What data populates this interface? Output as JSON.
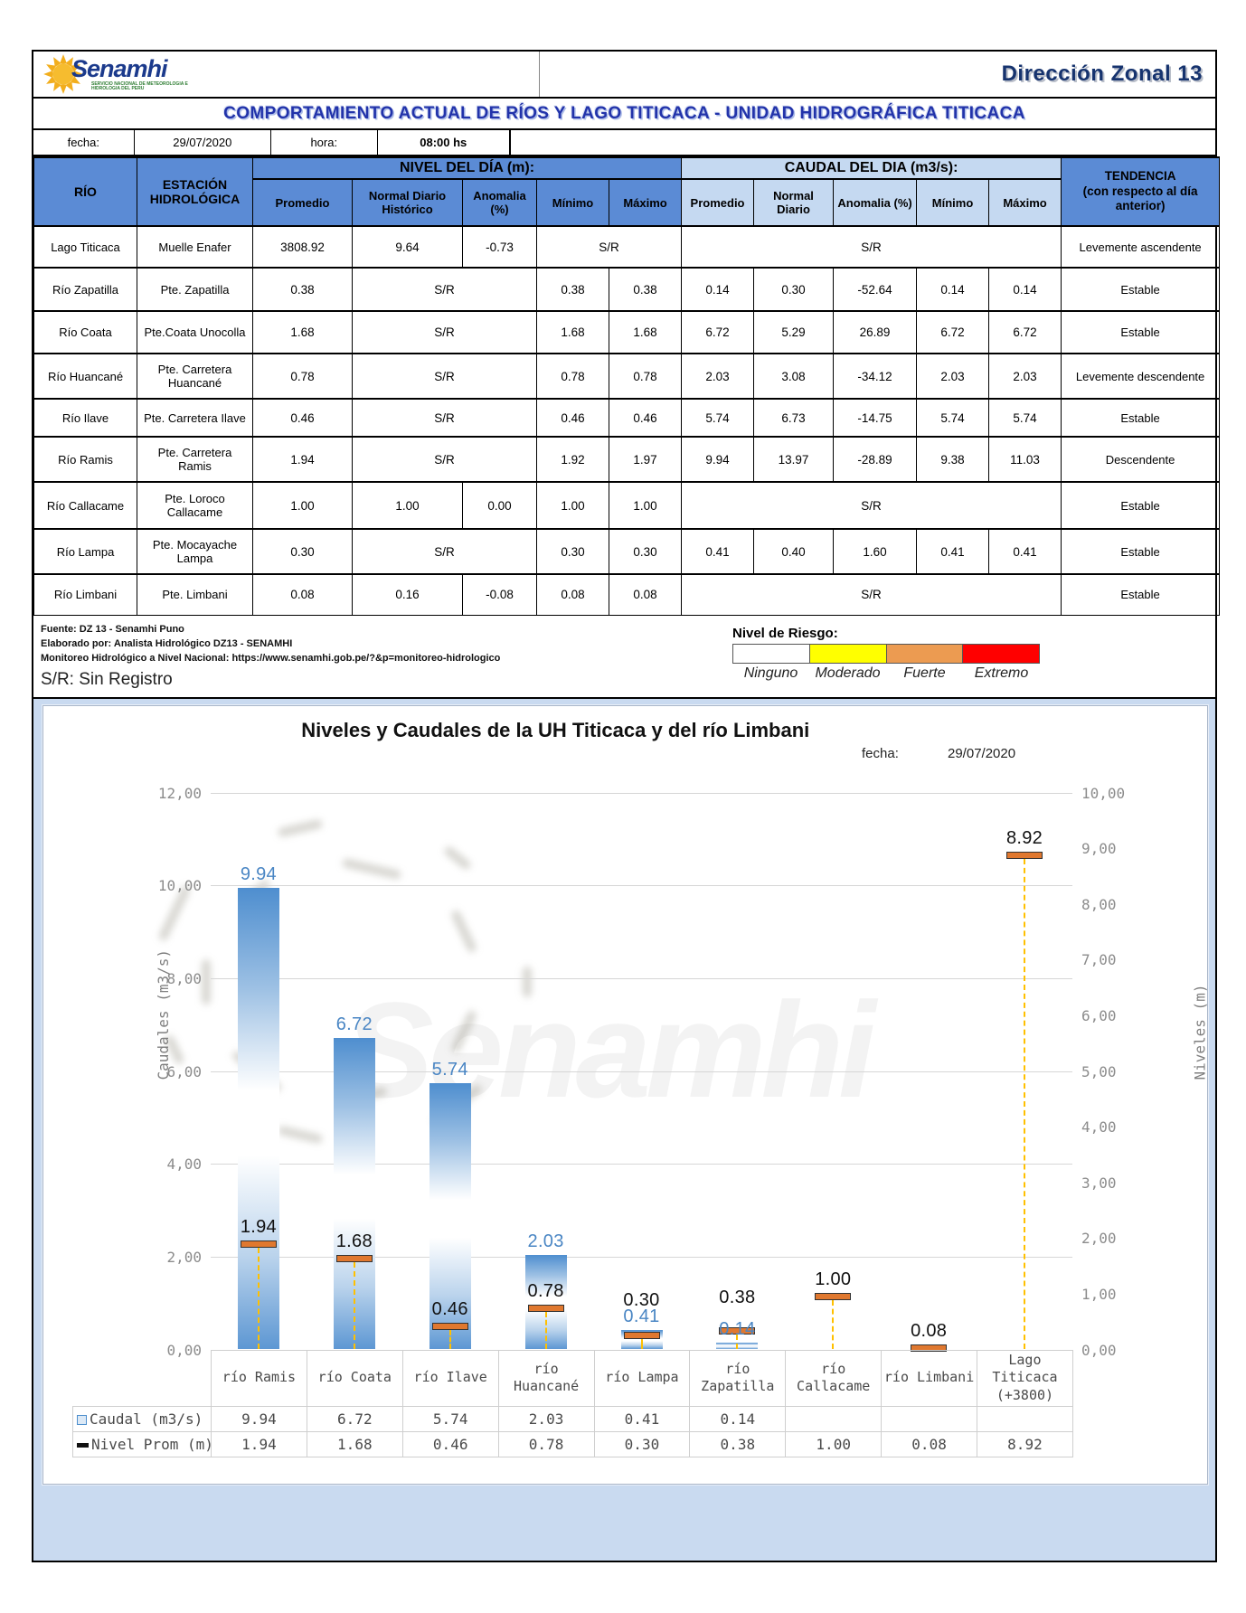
{
  "header": {
    "brand": "Senamhi",
    "brand_sub": "SERVICIO NACIONAL DE METEOROLOGIA E HIDROLOGIA DEL PERU",
    "direccion": "Dirección Zonal 13"
  },
  "title": "COMPORTAMIENTO ACTUAL DE RÍOS Y LAGO TITICACA - UNIDAD HIDROGRÁFICA  TITICACA",
  "meta": {
    "fecha_label": "fecha:",
    "fecha": "29/07/2020",
    "hora_label": "hora:",
    "hora": "08:00 hs"
  },
  "table": {
    "col_rio": "RÍO",
    "col_estacion": "ESTACIÓN HIDROLÓGICA",
    "nivel_header": "NIVEL DEL DÍA (m):",
    "caudal_header": "CAUDAL DEL DIA (m3/s):",
    "tendencia_line1": "TENDENCIA",
    "tendencia_line2": "(con respecto al día anterior)",
    "nivel_cols": [
      "Promedio",
      "Normal Diario Histórico",
      "Anomalia (%)",
      "Mínimo",
      "Máximo"
    ],
    "caudal_cols": [
      "Promedio",
      "Normal Diario",
      "Anomalia (%)",
      "Mínimo",
      "Máximo"
    ],
    "rows": [
      {
        "rio": "Lago Titicaca",
        "estacion": "Muelle Enafer",
        "nivel": [
          [
            "3808.92",
            1
          ],
          [
            "9.64",
            1
          ],
          [
            "-0.73",
            1
          ],
          [
            "S/R",
            2
          ]
        ],
        "caudal": [
          [
            "S/R",
            5
          ]
        ],
        "tendencia": "Levemente ascendente"
      },
      {
        "rio": "Río Zapatilla",
        "estacion": "Pte. Zapatilla",
        "nivel": [
          [
            "0.38",
            1
          ],
          [
            "S/R",
            2
          ],
          [
            "0.38",
            1
          ],
          [
            "0.38",
            1
          ]
        ],
        "caudal": [
          [
            "0.14",
            1
          ],
          [
            "0.30",
            1
          ],
          [
            "-52.64",
            1
          ],
          [
            "0.14",
            1
          ],
          [
            "0.14",
            1
          ]
        ],
        "tendencia": "Estable"
      },
      {
        "rio": "Río Coata",
        "estacion": "Pte.Coata Unocolla",
        "nivel": [
          [
            "1.68",
            1
          ],
          [
            "S/R",
            2
          ],
          [
            "1.68",
            1
          ],
          [
            "1.68",
            1
          ]
        ],
        "caudal": [
          [
            "6.72",
            1
          ],
          [
            "5.29",
            1
          ],
          [
            "26.89",
            1
          ],
          [
            "6.72",
            1
          ],
          [
            "6.72",
            1
          ]
        ],
        "tendencia": "Estable"
      },
      {
        "rio": "Río Huancané",
        "estacion": "Pte. Carretera Huancané",
        "nivel": [
          [
            "0.78",
            1
          ],
          [
            "S/R",
            2
          ],
          [
            "0.78",
            1
          ],
          [
            "0.78",
            1
          ]
        ],
        "caudal": [
          [
            "2.03",
            1
          ],
          [
            "3.08",
            1
          ],
          [
            "-34.12",
            1
          ],
          [
            "2.03",
            1
          ],
          [
            "2.03",
            1
          ]
        ],
        "tendencia": "Levemente descendente"
      },
      {
        "rio": "Río Ilave",
        "estacion": "Pte. Carretera Ilave",
        "nivel": [
          [
            "0.46",
            1
          ],
          [
            "S/R",
            2
          ],
          [
            "0.46",
            1
          ],
          [
            "0.46",
            1
          ]
        ],
        "caudal": [
          [
            "5.74",
            1
          ],
          [
            "6.73",
            1
          ],
          [
            "-14.75",
            1
          ],
          [
            "5.74",
            1
          ],
          [
            "5.74",
            1
          ]
        ],
        "tendencia": "Estable"
      },
      {
        "rio": "Río Ramis",
        "estacion": "Pte. Carretera Ramis",
        "nivel": [
          [
            "1.94",
            1
          ],
          [
            "S/R",
            2
          ],
          [
            "1.92",
            1
          ],
          [
            "1.97",
            1
          ]
        ],
        "caudal": [
          [
            "9.94",
            1
          ],
          [
            "13.97",
            1
          ],
          [
            "-28.89",
            1
          ],
          [
            "9.38",
            1
          ],
          [
            "11.03",
            1
          ]
        ],
        "tendencia": "Descendente"
      },
      {
        "rio": "Río Callacame",
        "estacion": "Pte. Loroco Callacame",
        "nivel": [
          [
            "1.00",
            1
          ],
          [
            "1.00",
            1
          ],
          [
            "0.00",
            1
          ],
          [
            "1.00",
            1
          ],
          [
            "1.00",
            1
          ]
        ],
        "caudal": [
          [
            "S/R",
            5
          ]
        ],
        "tendencia": "Estable"
      },
      {
        "rio": "Río Lampa",
        "estacion": "Pte. Mocayache Lampa",
        "nivel": [
          [
            "0.30",
            1
          ],
          [
            "S/R",
            2
          ],
          [
            "0.30",
            1
          ],
          [
            "0.30",
            1
          ]
        ],
        "caudal": [
          [
            "0.41",
            1
          ],
          [
            "0.40",
            1
          ],
          [
            "1.60",
            1
          ],
          [
            "0.41",
            1
          ],
          [
            "0.41",
            1
          ]
        ],
        "tendencia": "Estable"
      },
      {
        "rio": "Río Limbani",
        "estacion": "Pte. Limbani",
        "nivel": [
          [
            "0.08",
            1
          ],
          [
            "0.16",
            1
          ],
          [
            "-0.08",
            1
          ],
          [
            "0.08",
            1
          ],
          [
            "0.08",
            1
          ]
        ],
        "caudal": [
          [
            "S/R",
            5
          ]
        ],
        "tendencia": "Estable"
      }
    ]
  },
  "footnotes": [
    "Fuente: DZ 13 - Senamhi Puno",
    "Elaborado por: Analista Hidrológico DZ13 - SENAMHI",
    "Monitoreo Hidrológico a Nivel Nacional: https://www.senamhi.gob.pe/?&p=monitoreo-hidrologico"
  ],
  "sr_note": "S/R: Sin Registro",
  "risk": {
    "label": "Nivel de Riesgo:",
    "levels": [
      {
        "name": "Ninguno",
        "color": "#ffffff"
      },
      {
        "name": "Moderado",
        "color": "#ffff00"
      },
      {
        "name": "Fuerte",
        "color": "#ec9b51"
      },
      {
        "name": "Extremo",
        "color": "#ff0000"
      }
    ]
  },
  "chart_data": {
    "type": "bar",
    "title": "Niveles y Caudales de la UH Titicaca y del río Limbani",
    "fecha_label": "fecha:",
    "fecha": "29/07/2020",
    "ylabel_left": "Caudales (m3/s)",
    "ylabel_right": "Niveles (m)",
    "ylim_left": [
      0,
      12
    ],
    "ylim_right": [
      0,
      10
    ],
    "left_ticks": [
      "12,00",
      "10,00",
      "8,00",
      "6,00",
      "4,00",
      "2,00",
      "0,00"
    ],
    "right_ticks": [
      "10,00",
      "9,00",
      "8,00",
      "7,00",
      "6,00",
      "5,00",
      "4,00",
      "3,00",
      "2,00",
      "1,00",
      "0,00"
    ],
    "grid": true,
    "legend_position": "table-left",
    "watermark": "Senamhi",
    "categories": [
      "río Ramis",
      "río Coata",
      "río Ilave",
      "río Huancané",
      "río Lampa",
      "río Zapatilla",
      "río Callacame",
      "río Limbani",
      "Lago Titicaca (+3800)"
    ],
    "series": [
      {
        "name": "Caudal (m3/s)",
        "axis": "left",
        "style": "bar",
        "values": [
          9.94,
          6.72,
          5.74,
          2.03,
          0.41,
          0.14,
          null,
          null,
          null
        ]
      },
      {
        "name": "Nivel Prom (m)",
        "axis": "right",
        "style": "marker",
        "values": [
          1.94,
          1.68,
          0.46,
          0.78,
          0.3,
          0.38,
          1.0,
          0.08,
          8.92
        ]
      }
    ],
    "colors": {
      "bar": "#4e8ecf",
      "marker": "#e0782f",
      "dropline": "#ffc000",
      "caudal_label": "#4a86c4",
      "nivel_label": "#111111"
    }
  }
}
